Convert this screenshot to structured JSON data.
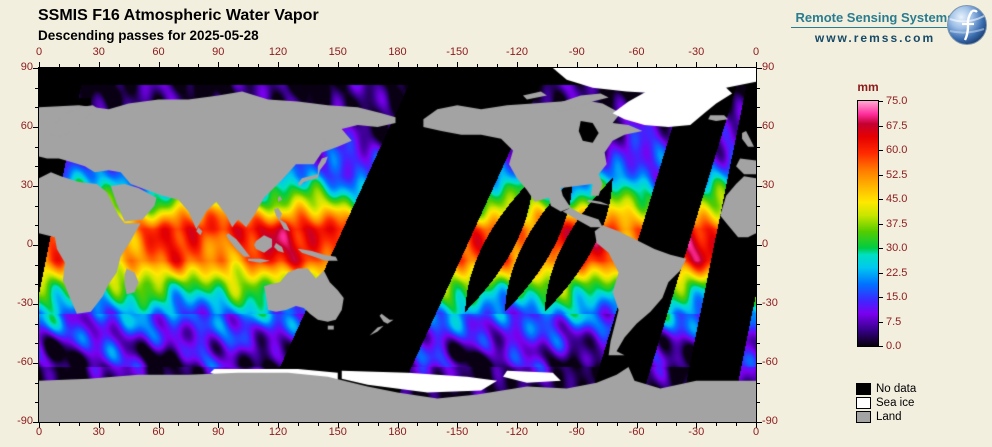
{
  "header": {
    "title": "SSMIS F16 Atmospheric Water Vapor",
    "subtitle": "Descending passes for 2025-05-28",
    "brand": {
      "name": "Remote Sensing Systems",
      "url": "www.remss.com",
      "accent_color": "#2a7c8e"
    }
  },
  "chart_data": {
    "type": "heatmap",
    "title": "SSMIS F16 Atmospheric Water Vapor",
    "subtitle": "Descending passes for 2025-05-28",
    "units": "mm",
    "projection": "equirectangular, longitude 0 to 360 east (map centered on 180), latitude -90 to 90",
    "lon_range": [
      0,
      360
    ],
    "lat_range": [
      -90,
      90
    ],
    "lon_tick_labels": [
      "0",
      "30",
      "60",
      "90",
      "120",
      "150",
      "180",
      "-150",
      "-120",
      "-90",
      "-60",
      "-30",
      "0"
    ],
    "lat_tick_labels": [
      "90",
      "60",
      "30",
      "0",
      "-30",
      "-60",
      "-90"
    ],
    "colorbar": {
      "label": "mm",
      "min": 0,
      "max": 75,
      "tick_labels": [
        "75.0",
        "67.5",
        "60.0",
        "52.5",
        "45.0",
        "37.5",
        "30.0",
        "22.5",
        "15.0",
        "7.5",
        "0.0"
      ],
      "stops": [
        [
          0,
          "#06000c"
        ],
        [
          5,
          "#38008c"
        ],
        [
          10,
          "#7a00f0"
        ],
        [
          14,
          "#3c28ff"
        ],
        [
          19,
          "#0073ff"
        ],
        [
          24,
          "#00c8f0"
        ],
        [
          28,
          "#00e0c0"
        ],
        [
          30,
          "#00cc44"
        ],
        [
          35,
          "#55cc00"
        ],
        [
          40,
          "#c8e600"
        ],
        [
          44,
          "#ffe800"
        ],
        [
          49,
          "#ffb400"
        ],
        [
          54,
          "#ff7800"
        ],
        [
          59,
          "#ff2a00"
        ],
        [
          64,
          "#e60000"
        ],
        [
          68,
          "#c40030"
        ],
        [
          71,
          "#ff2e9e"
        ],
        [
          75,
          "#ffaad2"
        ]
      ]
    },
    "legend": [
      {
        "label": "No data",
        "color": "#000000"
      },
      {
        "label": "Sea ice",
        "color": "#ffffff"
      },
      {
        "label": "Land",
        "color": "#a3a3a3"
      }
    ],
    "description": "Swath map of total columnar atmospheric water vapor (mm) from SSMIS F16 descending passes; black diagonal bands are orbit data gaps, tropics show 45-70 mm (red), high latitudes below 10 mm (purple)."
  },
  "page": {
    "background": "#f3efdf",
    "axis_label_color": "#8b1a1a"
  }
}
